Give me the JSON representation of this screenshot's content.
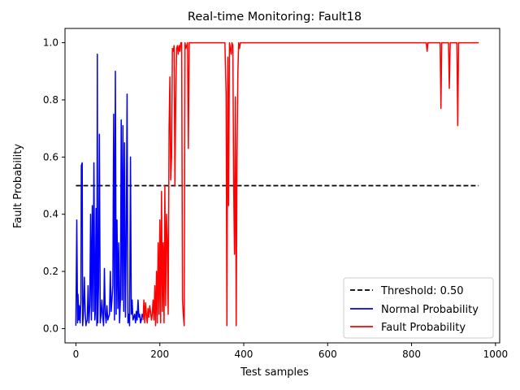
{
  "chart_data": {
    "type": "line",
    "title": "Real-time Monitoring: Fault18",
    "xlabel": "Test samples",
    "ylabel": "Fault Probability",
    "xlim": [
      -26,
      1010
    ],
    "ylim": [
      -0.05,
      1.05
    ],
    "xticks": [
      0,
      200,
      400,
      600,
      800,
      1000
    ],
    "yticks": [
      0.0,
      0.2,
      0.4,
      0.6,
      0.8,
      1.0
    ],
    "xtick_labels": [
      "0",
      "200",
      "400",
      "600",
      "800",
      "1000"
    ],
    "ytick_labels": [
      "0.0",
      "0.2",
      "0.4",
      "0.6",
      "0.8",
      "1.0"
    ],
    "grid": false,
    "legend_position": "lower-right",
    "threshold": {
      "name": "Threshold: 0.50",
      "value": 0.5,
      "x": [
        0,
        960
      ],
      "color": "#000000",
      "dash": "dashed"
    },
    "series": [
      {
        "name": "Normal Probability",
        "color": "#0000ff",
        "x": [
          0,
          2,
          4,
          5,
          7,
          8,
          10,
          12,
          13,
          15,
          16,
          18,
          20,
          22,
          24,
          25,
          27,
          29,
          31,
          33,
          35,
          37,
          39,
          41,
          43,
          45,
          46,
          48,
          50,
          51,
          52,
          54,
          56,
          58,
          60,
          62,
          64,
          66,
          68,
          70,
          72,
          74,
          76,
          78,
          80,
          82,
          84,
          86,
          88,
          90,
          92,
          94,
          96,
          98,
          100,
          102,
          104,
          106,
          108,
          110,
          112,
          114,
          116,
          118,
          120,
          122,
          124,
          126,
          128,
          130,
          132,
          134,
          136,
          138,
          140,
          142,
          144,
          146,
          148,
          150,
          152,
          154,
          156,
          158,
          160
        ],
        "y": [
          0.01,
          0.38,
          0.02,
          0.12,
          0.03,
          0.08,
          0.02,
          0.1,
          0.57,
          0.58,
          0.01,
          0.05,
          0.18,
          0.06,
          0.01,
          0.02,
          0.03,
          0.15,
          0.02,
          0.08,
          0.4,
          0.03,
          0.43,
          0.06,
          0.58,
          0.03,
          0.05,
          0.42,
          0.01,
          0.96,
          0.02,
          0.15,
          0.68,
          0.02,
          0.05,
          0.1,
          0.04,
          0.01,
          0.21,
          0.05,
          0.02,
          0.08,
          0.03,
          0.04,
          0.05,
          0.2,
          0.06,
          0.1,
          0.15,
          0.75,
          0.03,
          0.9,
          0.05,
          0.38,
          0.07,
          0.3,
          0.02,
          0.1,
          0.73,
          0.1,
          0.71,
          0.06,
          0.65,
          0.04,
          0.3,
          0.82,
          0.02,
          0.05,
          0.01,
          0.6,
          0.05,
          0.1,
          0.03,
          0.04,
          0.05,
          0.02,
          0.06,
          0.03,
          0.1,
          0.04,
          0.05,
          0.02,
          0.03,
          0.05,
          0.04
        ]
      },
      {
        "name": "Fault Probability",
        "color": "#ff0000",
        "x": [
          160,
          162,
          164,
          166,
          168,
          170,
          172,
          174,
          176,
          178,
          180,
          182,
          184,
          186,
          188,
          190,
          192,
          194,
          196,
          198,
          200,
          202,
          204,
          206,
          208,
          210,
          212,
          214,
          216,
          218,
          220,
          222,
          224,
          226,
          228,
          230,
          232,
          234,
          236,
          238,
          240,
          242,
          244,
          246,
          248,
          250,
          252,
          254,
          256,
          258,
          260,
          262,
          264,
          266,
          268,
          270,
          272,
          274,
          276,
          278,
          280,
          285,
          290,
          295,
          298,
          300,
          302,
          305,
          320,
          340,
          355,
          358,
          360,
          362,
          364,
          366,
          368,
          370,
          372,
          374,
          376,
          378,
          380,
          382,
          384,
          386,
          388,
          390,
          392,
          394,
          396,
          400,
          420,
          500,
          600,
          700,
          800,
          835,
          837,
          839,
          841,
          845,
          860,
          868,
          870,
          872,
          874,
          880,
          888,
          890,
          892,
          894,
          900,
          905,
          908,
          910,
          912,
          915,
          930,
          960
        ],
        "y": [
          0.03,
          0.1,
          0.02,
          0.09,
          0.05,
          0.02,
          0.07,
          0.04,
          0.08,
          0.06,
          0.03,
          0.05,
          0.1,
          0.03,
          0.15,
          0.01,
          0.2,
          0.02,
          0.3,
          0.05,
          0.38,
          0.02,
          0.48,
          0.06,
          0.3,
          0.02,
          0.5,
          0.08,
          0.4,
          0.3,
          0.05,
          0.7,
          0.88,
          0.52,
          0.6,
          0.98,
          0.97,
          0.99,
          0.5,
          0.8,
          0.98,
          0.99,
          0.96,
          0.99,
          0.97,
          1.0,
          1.0,
          0.1,
          0.05,
          0.01,
          1.0,
          0.98,
          0.99,
          1.0,
          0.63,
          1.0,
          1.0,
          1.0,
          1.0,
          1.0,
          1.0,
          1.0,
          1.0,
          1.0,
          1.0,
          1.0,
          1.0,
          1.0,
          1.0,
          1.0,
          1.0,
          0.82,
          0.01,
          0.95,
          0.43,
          1.0,
          0.98,
          0.96,
          1.0,
          0.99,
          0.5,
          0.26,
          0.81,
          0.01,
          0.6,
          0.9,
          1.0,
          0.98,
          1.0,
          1.0,
          1.0,
          1.0,
          1.0,
          1.0,
          1.0,
          1.0,
          1.0,
          1.0,
          0.97,
          1.0,
          1.0,
          1.0,
          1.0,
          1.0,
          0.77,
          1.0,
          1.0,
          1.0,
          1.0,
          0.84,
          1.0,
          1.0,
          1.0,
          1.0,
          1.0,
          0.71,
          1.0,
          1.0,
          1.0,
          1.0
        ]
      }
    ]
  }
}
